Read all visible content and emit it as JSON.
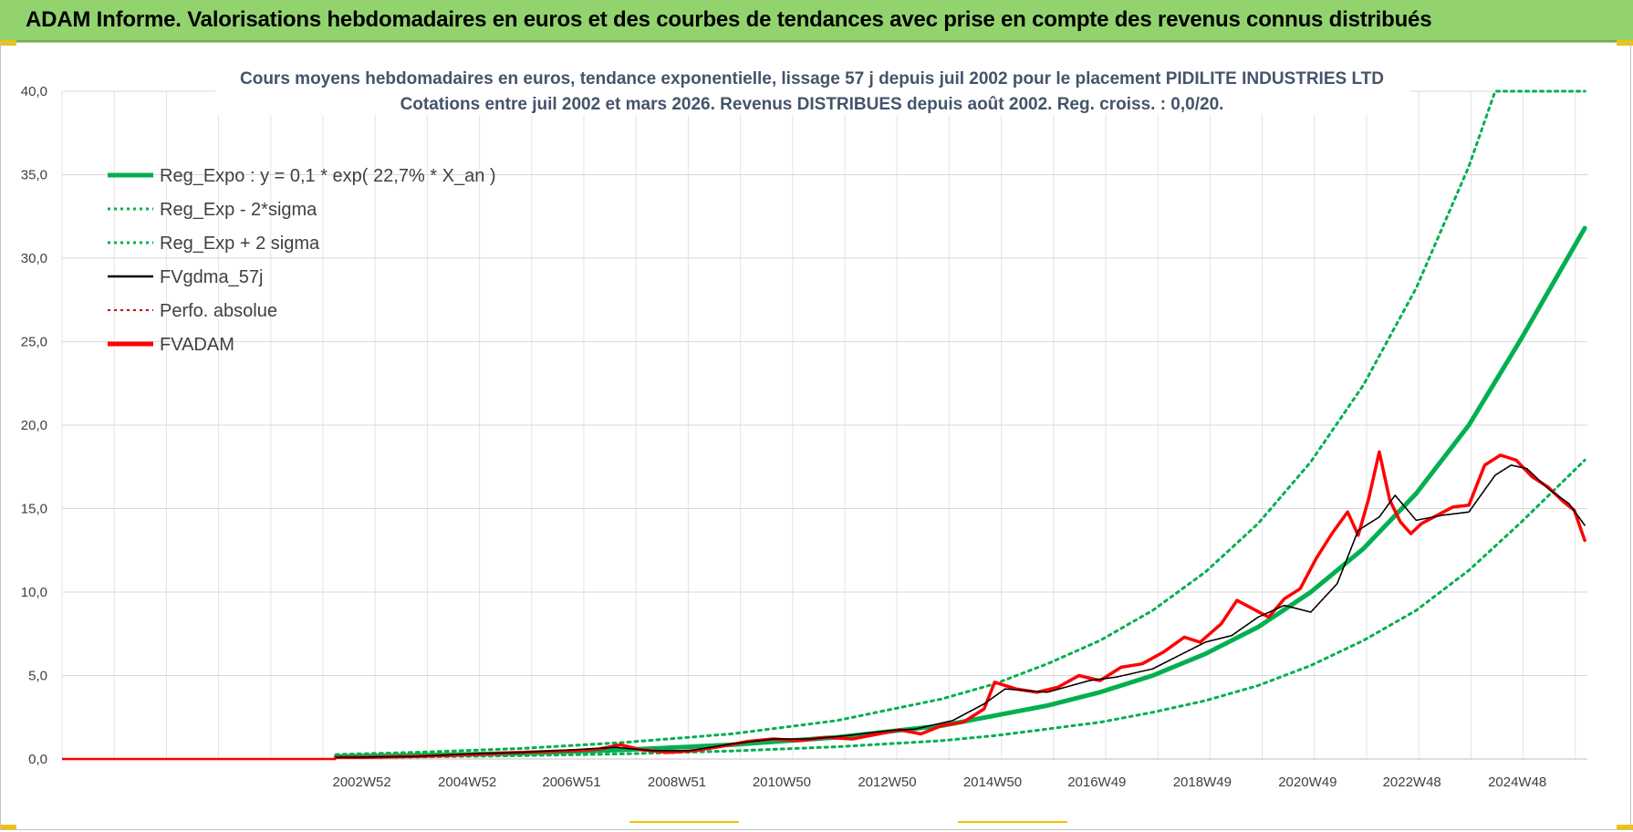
{
  "header": {
    "title": "ADAM Informe. Valorisations hebdomadaires en euros et des courbes de tendances avec prise en compte des revenus connus distribués"
  },
  "colors": {
    "header_bg": "#92d36e",
    "trend": "#00b050",
    "band": "#00b050",
    "gdma": "#000000",
    "perfo": "#c00000",
    "fvadam": "#ff0000",
    "accent": "#f2c200"
  },
  "chart_data": {
    "type": "line",
    "title_line1": "Cours moyens hebdomadaires en euros, tendance exponentielle, lissage 57 j depuis juil 2002 pour le placement PIDILITE INDUSTRIES LTD",
    "title_line2": "Cotations entre juil 2002 et mars 2026. Revenus DISTRIBUES depuis août 2002. Reg. croiss. : 0,0/20.",
    "xlabel": "",
    "ylabel": "",
    "ylim": [
      0,
      40
    ],
    "y_ticks": [
      "0,0",
      "5,0",
      "10,0",
      "15,0",
      "20,0",
      "25,0",
      "30,0",
      "35,0",
      "40,0"
    ],
    "x_range_years": [
      1997.3,
      2026.25
    ],
    "x_ticks": [
      {
        "label": "2002W52",
        "year": 2002.99
      },
      {
        "label": "2004W52",
        "year": 2004.99
      },
      {
        "label": "2006W51",
        "year": 2006.97
      },
      {
        "label": "2008W51",
        "year": 2008.97
      },
      {
        "label": "2010W50",
        "year": 2010.96
      },
      {
        "label": "2012W50",
        "year": 2012.96
      },
      {
        "label": "2014W50",
        "year": 2014.96
      },
      {
        "label": "2016W49",
        "year": 2016.94
      },
      {
        "label": "2018W49",
        "year": 2018.94
      },
      {
        "label": "2020W49",
        "year": 2020.94
      },
      {
        "label": "2022W48",
        "year": 2022.92
      },
      {
        "label": "2024W48",
        "year": 2024.92
      }
    ],
    "grid": true,
    "legend_position": "top-left",
    "legend": [
      {
        "label": "Reg_Expo : y = 0,1 * exp( 22,7% *  X_an )",
        "key": "trend",
        "style": "solid-thick"
      },
      {
        "label": "Reg_Exp - 2*sigma",
        "key": "low",
        "style": "dotted"
      },
      {
        "label": "Reg_Exp + 2 sigma",
        "key": "high",
        "style": "dotted"
      },
      {
        "label": "FVgdma_57j",
        "key": "gdma",
        "style": "solid-thin"
      },
      {
        "label": "Perfo. absolue",
        "key": "perfo",
        "style": "dotted"
      },
      {
        "label": "FVADAM",
        "key": "fvadam",
        "style": "solid-thick"
      }
    ],
    "series": [
      {
        "name": "Reg_Expo",
        "x": [
          2002.5,
          2004,
          2006,
          2008,
          2010,
          2012,
          2014,
          2015,
          2016,
          2017,
          2018,
          2019,
          2020,
          2021,
          2022,
          2023,
          2024,
          2025,
          2026.2
        ],
        "values": [
          0.15,
          0.22,
          0.35,
          0.55,
          0.85,
          1.3,
          2.0,
          2.6,
          3.2,
          4.0,
          5.0,
          6.3,
          7.9,
          10.0,
          12.6,
          15.9,
          20.0,
          25.2,
          31.8
        ]
      },
      {
        "name": "Reg_Exp - 2*sigma",
        "x": [
          2002.5,
          2004,
          2006,
          2008,
          2010,
          2012,
          2014,
          2015,
          2016,
          2017,
          2018,
          2019,
          2020,
          2021,
          2022,
          2023,
          2024,
          2025,
          2026.2
        ],
        "values": [
          0.08,
          0.12,
          0.2,
          0.31,
          0.48,
          0.73,
          1.1,
          1.4,
          1.8,
          2.2,
          2.8,
          3.5,
          4.4,
          5.6,
          7.1,
          8.9,
          11.3,
          14.2,
          17.9
        ]
      },
      {
        "name": "Reg_Exp + 2 sigma",
        "x": [
          2002.5,
          2004,
          2006,
          2008,
          2010,
          2012,
          2014,
          2015,
          2016,
          2017,
          2018,
          2019,
          2020,
          2021,
          2022,
          2023,
          2024,
          2024.5,
          2026.2
        ],
        "values": [
          0.27,
          0.4,
          0.63,
          1.0,
          1.5,
          2.3,
          3.6,
          4.5,
          5.7,
          7.1,
          8.9,
          11.2,
          14.1,
          17.8,
          22.4,
          28.2,
          35.5,
          40.0,
          40.0
        ]
      },
      {
        "name": "FVgdma_57j",
        "x": [
          2002.5,
          2004,
          2005,
          2006,
          2007,
          2007.8,
          2008.5,
          2009.2,
          2010,
          2010.8,
          2011.5,
          2012.2,
          2013,
          2013.5,
          2014.2,
          2014.8,
          2015.2,
          2016,
          2016.8,
          2017.3,
          2018,
          2018.5,
          2019,
          2019.5,
          2020,
          2020.5,
          2021,
          2021.5,
          2021.9,
          2022.3,
          2022.6,
          2023,
          2023.5,
          2024,
          2024.5,
          2024.8,
          2025.1,
          2025.5,
          2025.9,
          2026.2
        ],
        "values": [
          0.1,
          0.15,
          0.3,
          0.4,
          0.55,
          0.7,
          0.5,
          0.5,
          0.9,
          1.2,
          1.2,
          1.4,
          1.7,
          1.8,
          2.3,
          3.3,
          4.2,
          4.0,
          4.7,
          4.9,
          5.4,
          6.2,
          7.0,
          7.4,
          8.5,
          9.2,
          8.8,
          10.5,
          13.7,
          14.5,
          15.8,
          14.3,
          14.6,
          14.8,
          17.0,
          17.6,
          17.4,
          16.2,
          15.3,
          14.0
        ]
      },
      {
        "name": "Perfo. absolue",
        "x": [
          2002.5,
          2004,
          2005,
          2006,
          2007,
          2007.8,
          2008.5,
          2009.2,
          2010,
          2010.8,
          2011.5,
          2012.2,
          2013,
          2013.5,
          2014.2,
          2014.8,
          2015.2,
          2016,
          2016.8,
          2017.3,
          2018,
          2018.5,
          2019,
          2019.5,
          2020,
          2020.5,
          2021,
          2021.5,
          2021.9,
          2022.3,
          2022.6,
          2023,
          2023.5,
          2024,
          2024.5,
          2024.8,
          2025.1,
          2025.5,
          2025.9,
          2026.2
        ],
        "values": [
          0.1,
          0.15,
          0.3,
          0.4,
          0.55,
          0.7,
          0.5,
          0.5,
          0.9,
          1.2,
          1.2,
          1.4,
          1.7,
          1.8,
          2.3,
          3.3,
          4.2,
          4.0,
          4.7,
          4.9,
          5.4,
          6.2,
          7.0,
          7.4,
          8.5,
          9.2,
          8.8,
          10.5,
          13.7,
          14.5,
          15.8,
          14.3,
          14.6,
          14.8,
          17.0,
          17.6,
          17.4,
          16.2,
          15.3,
          14.0
        ]
      },
      {
        "name": "FVADAM",
        "x": [
          2002.5,
          2003,
          2004,
          2005,
          2005.6,
          2006,
          2006.5,
          2007,
          2007.5,
          2007.9,
          2008.3,
          2008.8,
          2009.3,
          2009.8,
          2010.3,
          2010.8,
          2011.3,
          2011.8,
          2012.3,
          2012.8,
          2013.2,
          2013.6,
          2014.0,
          2014.4,
          2014.8,
          2015.0,
          2015.4,
          2015.8,
          2016.2,
          2016.6,
          2017.0,
          2017.4,
          2017.8,
          2018.2,
          2018.6,
          2018.9,
          2019.3,
          2019.6,
          2019.9,
          2020.2,
          2020.5,
          2020.8,
          2021.1,
          2021.4,
          2021.7,
          2021.9,
          2022.1,
          2022.3,
          2022.5,
          2022.7,
          2022.9,
          2023.1,
          2023.4,
          2023.7,
          2024.0,
          2024.3,
          2024.6,
          2024.9,
          2025.2,
          2025.5,
          2025.8,
          2026.0,
          2026.2
        ],
        "values": [
          0.1,
          0.1,
          0.15,
          0.25,
          0.35,
          0.4,
          0.45,
          0.5,
          0.6,
          0.85,
          0.55,
          0.4,
          0.5,
          0.75,
          1.05,
          1.2,
          1.1,
          1.3,
          1.2,
          1.5,
          1.75,
          1.5,
          2.0,
          2.2,
          3.0,
          4.6,
          4.2,
          4.0,
          4.3,
          5.0,
          4.7,
          5.5,
          5.7,
          6.4,
          7.3,
          7.0,
          8.1,
          9.5,
          9.0,
          8.5,
          9.6,
          10.2,
          12.0,
          13.5,
          14.8,
          13.4,
          15.6,
          18.4,
          15.5,
          14.2,
          13.5,
          14.1,
          14.6,
          15.1,
          15.2,
          17.6,
          18.2,
          17.9,
          16.9,
          16.3,
          15.4,
          14.9,
          13.1
        ]
      }
    ]
  }
}
